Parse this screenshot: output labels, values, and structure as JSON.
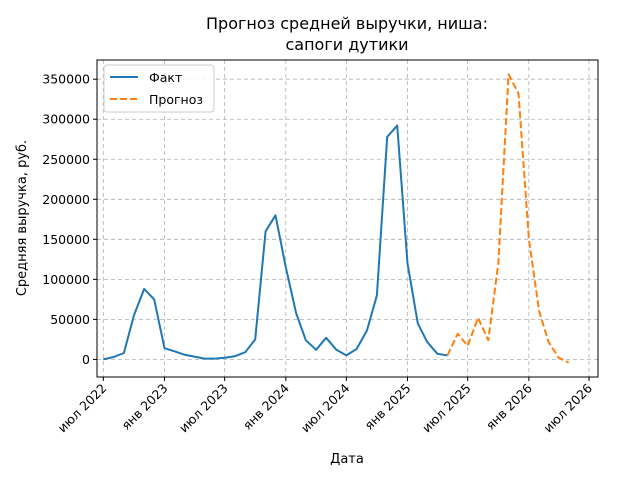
{
  "chart_data": {
    "type": "line",
    "title_lines": [
      "Прогноз средней выручки, ниша:",
      "сапоги дутики"
    ],
    "xlabel": "Дата",
    "ylabel": "Средняя выручка, руб.",
    "ylim": [
      -22000,
      374000
    ],
    "xlim": [
      "2022-06-12",
      "2026-07-28"
    ],
    "yticks": [
      0,
      50000,
      100000,
      150000,
      200000,
      250000,
      300000,
      350000
    ],
    "xticks": [
      {
        "date": "2022-07-01",
        "label": "июл 2022"
      },
      {
        "date": "2023-01-01",
        "label": "янв 2023"
      },
      {
        "date": "2023-07-01",
        "label": "июл 2023"
      },
      {
        "date": "2024-01-01",
        "label": "янв 2024"
      },
      {
        "date": "2024-07-01",
        "label": "июл 2024"
      },
      {
        "date": "2025-01-01",
        "label": "янв 2025"
      },
      {
        "date": "2025-07-01",
        "label": "июл 2025"
      },
      {
        "date": "2026-01-01",
        "label": "янв 2026"
      },
      {
        "date": "2026-07-01",
        "label": "июл 2026"
      }
    ],
    "grid": true,
    "legend_position": "top-left",
    "series": [
      {
        "name": "Факт",
        "color": "#1f77b4",
        "style": "solid",
        "x": [
          "2022-07-01",
          "2022-08-01",
          "2022-09-01",
          "2022-10-01",
          "2022-11-01",
          "2022-12-01",
          "2023-01-01",
          "2023-02-01",
          "2023-03-01",
          "2023-04-01",
          "2023-05-01",
          "2023-06-01",
          "2023-07-01",
          "2023-08-01",
          "2023-09-01",
          "2023-10-01",
          "2023-11-01",
          "2023-12-01",
          "2024-01-01",
          "2024-02-01",
          "2024-03-01",
          "2024-04-01",
          "2024-05-01",
          "2024-06-01",
          "2024-07-01",
          "2024-08-01",
          "2024-09-01",
          "2024-10-01",
          "2024-11-01",
          "2024-12-01",
          "2025-01-01",
          "2025-02-01",
          "2025-03-01",
          "2025-04-01",
          "2025-05-01"
        ],
        "y": [
          0,
          3000,
          8000,
          55000,
          88000,
          75000,
          14000,
          10000,
          6000,
          3500,
          1000,
          1000,
          2000,
          4000,
          9000,
          25000,
          160000,
          180000,
          115000,
          58000,
          24000,
          12000,
          27000,
          12000,
          5000,
          13000,
          36000,
          80000,
          278000,
          292000,
          120000,
          45000,
          22000,
          7000,
          5000
        ]
      },
      {
        "name": "Прогноз",
        "color": "#ff7f0e",
        "style": "dashed",
        "x": [
          "2025-05-01",
          "2025-06-01",
          "2025-07-01",
          "2025-08-01",
          "2025-09-01",
          "2025-10-01",
          "2025-11-01",
          "2025-12-01",
          "2026-01-01",
          "2026-02-01",
          "2026-03-01",
          "2026-04-01",
          "2026-05-01"
        ],
        "y": [
          5000,
          32000,
          17000,
          52000,
          24000,
          120000,
          356000,
          332000,
          150000,
          60000,
          22000,
          2000,
          -4000
        ]
      }
    ]
  }
}
